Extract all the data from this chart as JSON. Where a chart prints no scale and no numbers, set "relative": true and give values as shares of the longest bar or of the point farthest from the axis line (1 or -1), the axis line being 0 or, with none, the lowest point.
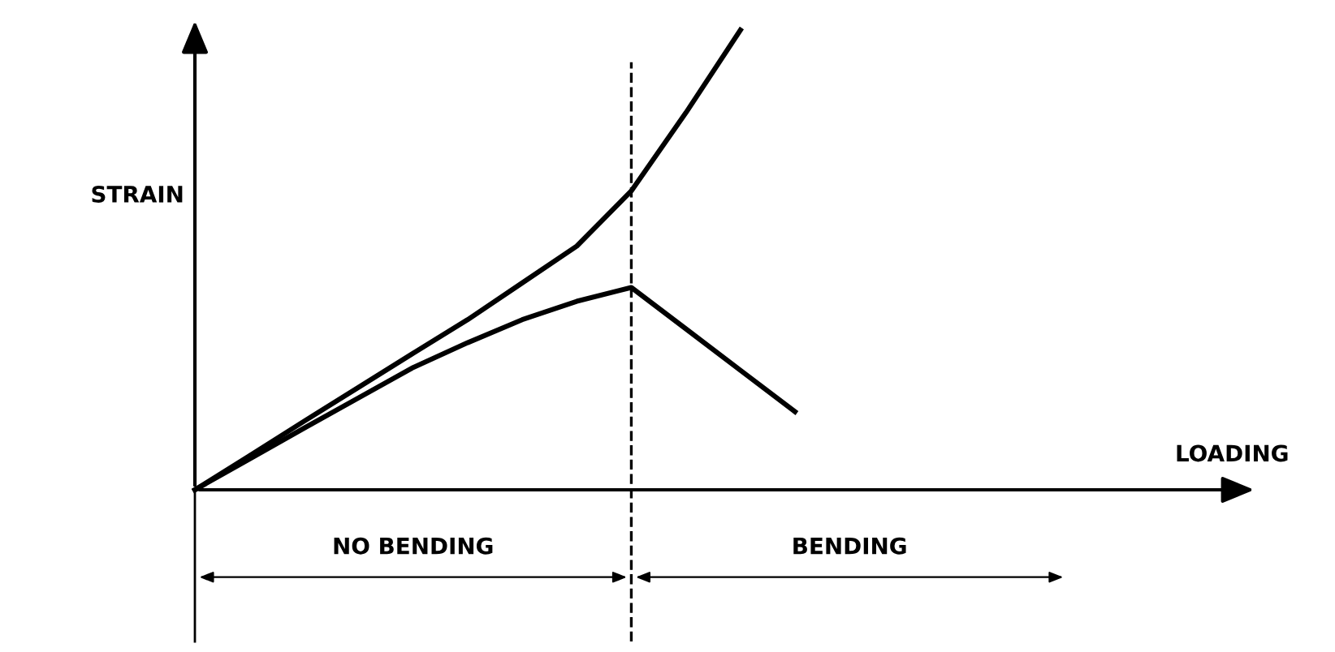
{
  "chart_data": {
    "type": "line",
    "relative": true,
    "xlabel": "LOADING",
    "ylabel": "STRAIN",
    "marker": "none",
    "line_style": "solid",
    "categories": [
      null,
      null,
      null,
      null,
      null,
      null,
      null,
      null,
      null,
      null,
      null,
      null,
      null,
      null,
      null,
      null,
      null,
      null,
      null
    ],
    "series": [
      {
        "color": "#000000",
        "values": [
          0,
          0.074,
          0.149,
          0.223,
          0.297,
          0.37,
          0.45,
          0.53,
          0.65,
          0.82,
          1.0,
          null,
          null,
          null,
          null,
          null,
          null,
          null,
          null
        ]
      },
      {
        "color": "#000000",
        "values": [
          0,
          0.067,
          0.134,
          0.2,
          0.266,
          0.32,
          0.37,
          0.41,
          0.44,
          0.35,
          0.26,
          0.17,
          null,
          null,
          null,
          null,
          null,
          null,
          null
        ]
      }
    ],
    "annotations": [
      "NO BENDING",
      "BENDING"
    ]
  }
}
